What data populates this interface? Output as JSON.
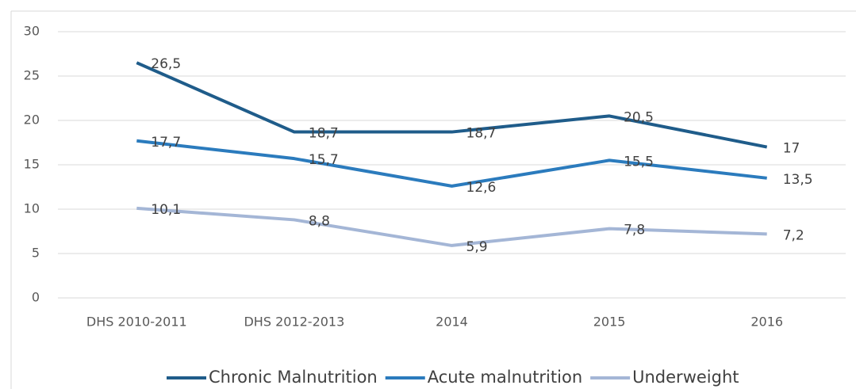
{
  "chart_data": {
    "type": "line",
    "categories": [
      "DHS 2010-2011",
      "DHS 2012-2013",
      "2014",
      "2015",
      "2016"
    ],
    "series": [
      {
        "name": "Chronic Malnutrition",
        "color": "#1f5c8a",
        "values": [
          26.5,
          18.7,
          18.7,
          20.5,
          17
        ],
        "value_labels": [
          "26,5",
          "18,7",
          "18,7",
          "20,5",
          "17"
        ]
      },
      {
        "name": "Acute malnutrition",
        "color": "#2b7bbd",
        "values": [
          17.7,
          15.7,
          12.6,
          15.5,
          13.5
        ],
        "value_labels": [
          "17,7",
          "15,7",
          "12,6",
          "15,5",
          "13,5"
        ]
      },
      {
        "name": "Underweight",
        "color": "#a4b6d6",
        "values": [
          10.1,
          8.8,
          5.9,
          7.8,
          7.2
        ],
        "value_labels": [
          "10,1",
          "8,8",
          "5,9",
          "7,8",
          "7,2"
        ]
      }
    ],
    "ylim": [
      0,
      30
    ],
    "yticks": [
      0,
      5,
      10,
      15,
      20,
      25,
      30
    ],
    "grid": true,
    "legend": "bottom"
  }
}
